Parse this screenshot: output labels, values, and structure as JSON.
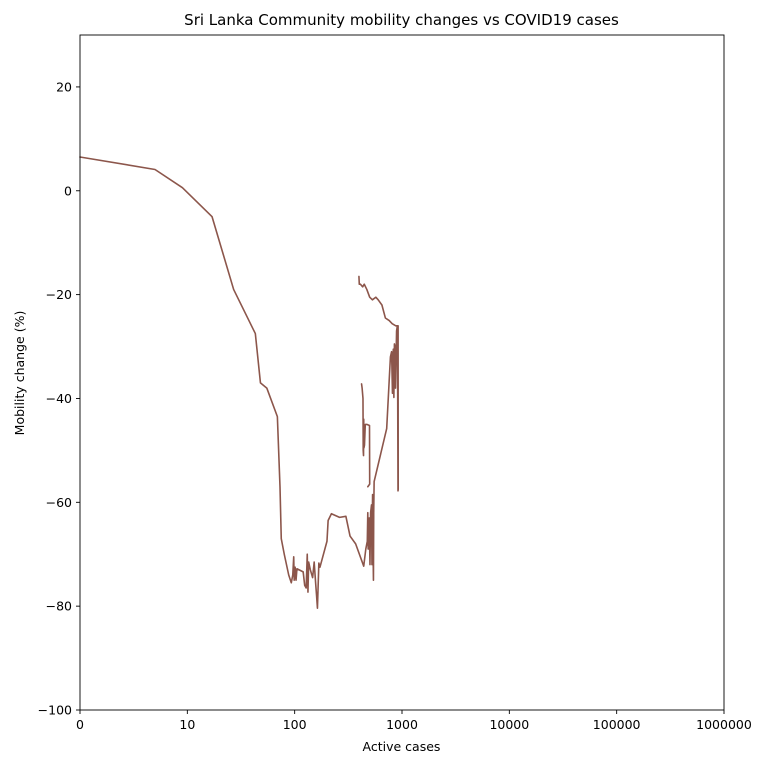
{
  "chart_data": {
    "type": "line",
    "title": "Sri Lanka Community mobility changes vs COVID19 cases",
    "xlabel": "Active cases",
    "ylabel": "Mobility change (%)",
    "x_scale": "log",
    "xlim_exponent": [
      0,
      6
    ],
    "ylim": [
      -100,
      30
    ],
    "x_ticks": [
      {
        "value": 1,
        "label": "0"
      },
      {
        "value": 10,
        "label": "10"
      },
      {
        "value": 100,
        "label": "100"
      },
      {
        "value": 1000,
        "label": "1000"
      },
      {
        "value": 10000,
        "label": "10000"
      },
      {
        "value": 100000,
        "label": "100000"
      },
      {
        "value": 1000000,
        "label": "1000000"
      }
    ],
    "y_ticks": [
      {
        "value": 20,
        "label": "20"
      },
      {
        "value": 0,
        "label": "0"
      },
      {
        "value": -20,
        "label": "−20"
      },
      {
        "value": -40,
        "label": "−40"
      },
      {
        "value": -60,
        "label": "−60"
      },
      {
        "value": -80,
        "label": "−80"
      },
      {
        "value": -100,
        "label": "−100"
      }
    ],
    "grid": false,
    "series": [
      {
        "color": "#8c564b",
        "points": [
          [
            1,
            6.5
          ],
          [
            5,
            4.1
          ],
          [
            9,
            0.6
          ],
          [
            17,
            -5
          ],
          [
            27,
            -19
          ],
          [
            43,
            -27.5
          ],
          [
            48,
            -37
          ],
          [
            55,
            -38
          ],
          [
            69,
            -43.5
          ],
          [
            73,
            -57
          ],
          [
            75,
            -67
          ],
          [
            80,
            -70
          ],
          [
            88,
            -74
          ],
          [
            93,
            -75.5
          ],
          [
            96,
            -74
          ],
          [
            98,
            -70.5
          ],
          [
            99,
            -75
          ],
          [
            101,
            -72.5
          ],
          [
            103,
            -75
          ],
          [
            105,
            -72.8
          ],
          [
            120,
            -73.4
          ],
          [
            124,
            -76
          ],
          [
            128,
            -76.5
          ],
          [
            131,
            -70
          ],
          [
            133,
            -77.3
          ],
          [
            135,
            -71.5
          ],
          [
            140,
            -73
          ],
          [
            147,
            -74.5
          ],
          [
            152,
            -71.5
          ],
          [
            157,
            -75.7
          ],
          [
            160,
            -78
          ],
          [
            163,
            -80.4
          ],
          [
            168,
            -71.7
          ],
          [
            172,
            -72.5
          ],
          [
            200,
            -67.5
          ],
          [
            205,
            -63.5
          ],
          [
            220,
            -62.2
          ],
          [
            262,
            -62.9
          ],
          [
            300,
            -62.7
          ],
          [
            328,
            -66.5
          ],
          [
            370,
            -68
          ],
          [
            440,
            -72.3
          ],
          [
            460,
            -69
          ],
          [
            475,
            -67.5
          ],
          [
            480,
            -62
          ],
          [
            484,
            -69
          ],
          [
            490,
            -66.7
          ],
          [
            495,
            -63
          ],
          [
            503,
            -72
          ],
          [
            510,
            -62
          ],
          [
            520,
            -60.5
          ],
          [
            525,
            -72
          ],
          [
            532,
            -58.5
          ],
          [
            538,
            -70
          ],
          [
            542,
            -75
          ],
          [
            545,
            -62
          ],
          [
            550,
            -56
          ],
          [
            720,
            -45.8
          ],
          [
            780,
            -32
          ],
          [
            800,
            -31
          ],
          [
            815,
            -39
          ],
          [
            825,
            -32
          ],
          [
            830,
            -30.5
          ],
          [
            840,
            -39.8
          ],
          [
            850,
            -29.5
          ],
          [
            860,
            -30
          ],
          [
            870,
            -38
          ],
          [
            890,
            -27
          ],
          [
            905,
            -26
          ],
          [
            912,
            -40
          ],
          [
            918,
            -57.8
          ],
          [
            922,
            -57.5
          ],
          [
            920,
            -26
          ],
          [
            875,
            -26
          ],
          [
            810,
            -25.6
          ],
          [
            760,
            -25
          ],
          [
            700,
            -24.5
          ],
          [
            650,
            -22
          ],
          [
            600,
            -21
          ],
          [
            570,
            -20.5
          ],
          [
            530,
            -21
          ],
          [
            500,
            -20.5
          ],
          [
            470,
            -19
          ],
          [
            445,
            -18
          ],
          [
            430,
            -18.5
          ],
          [
            410,
            -18
          ],
          [
            400,
            -18
          ],
          [
            397,
            -16.5
          ]
        ]
      },
      {
        "color": "#8c564b",
        "points": [
          [
            480,
            -57
          ],
          [
            500,
            -56.5
          ],
          [
            498,
            -45.2
          ],
          [
            470,
            -45
          ],
          [
            455,
            -45
          ],
          [
            447,
            -49
          ],
          [
            442,
            -49.5
          ],
          [
            440,
            -44
          ],
          [
            438,
            -51
          ],
          [
            435,
            -50
          ],
          [
            433,
            -40
          ],
          [
            425,
            -38
          ],
          [
            420,
            -37.2
          ]
        ]
      }
    ]
  }
}
